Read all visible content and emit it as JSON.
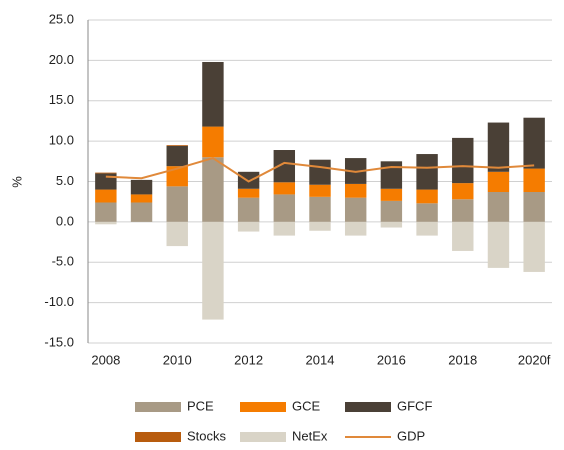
{
  "chart_data": {
    "type": "stacked-bar-line",
    "y_label": "%",
    "categories": [
      "2008",
      null,
      "2010",
      null,
      "2012",
      null,
      "2014",
      null,
      "2016",
      null,
      "2018",
      null,
      "2020f"
    ],
    "series": [
      {
        "name": "PCE",
        "kind": "bar",
        "color": "#a89a85",
        "values": [
          2.4,
          2.4,
          4.4,
          8.0,
          3.0,
          3.4,
          3.1,
          3.0,
          2.6,
          2.3,
          2.8,
          3.7,
          3.7
        ]
      },
      {
        "name": "GCE",
        "kind": "bar",
        "color": "#f57c00",
        "values": [
          1.6,
          1.0,
          2.5,
          3.8,
          1.1,
          1.5,
          1.5,
          1.7,
          1.5,
          1.7,
          2.0,
          2.5,
          2.9
        ]
      },
      {
        "name": "GFCF",
        "kind": "bar",
        "color": "#4a4036",
        "values": [
          2.0,
          1.8,
          2.5,
          8.0,
          2.1,
          4.0,
          3.1,
          3.2,
          3.4,
          4.4,
          5.6,
          6.1,
          6.3
        ]
      },
      {
        "name": "Stocks",
        "kind": "bar",
        "color": "#b85c0e",
        "values": [
          0.1,
          0,
          0.1,
          0,
          0,
          0,
          0,
          0,
          0,
          0,
          0,
          0,
          0
        ]
      },
      {
        "name": "NetEx",
        "kind": "bar",
        "color": "#d9d4c7",
        "values": [
          -0.3,
          0,
          -3.0,
          -12.1,
          -1.2,
          -1.7,
          -1.1,
          -1.7,
          -0.7,
          -1.7,
          -3.6,
          -5.7,
          -6.2
        ]
      },
      {
        "name": "GDP",
        "kind": "line",
        "color": "#e0893a",
        "values": [
          5.6,
          5.4,
          6.6,
          7.9,
          5.0,
          7.3,
          6.8,
          6.2,
          6.8,
          6.7,
          6.9,
          6.7,
          7.0
        ]
      }
    ],
    "ylim": [
      -15,
      25
    ],
    "yticks": [
      {
        "value": -15,
        "label": "-15.0"
      },
      {
        "value": -10,
        "label": "-10.0"
      },
      {
        "value": -5,
        "label": "-5.0"
      },
      {
        "value": 0,
        "label": "0.0"
      },
      {
        "value": 5,
        "label": "5.0"
      },
      {
        "value": 10,
        "label": "10.0"
      },
      {
        "value": 15,
        "label": "15.0"
      },
      {
        "value": 20,
        "label": "20.0"
      },
      {
        "value": 25,
        "label": "25.0"
      }
    ],
    "grid": true
  }
}
